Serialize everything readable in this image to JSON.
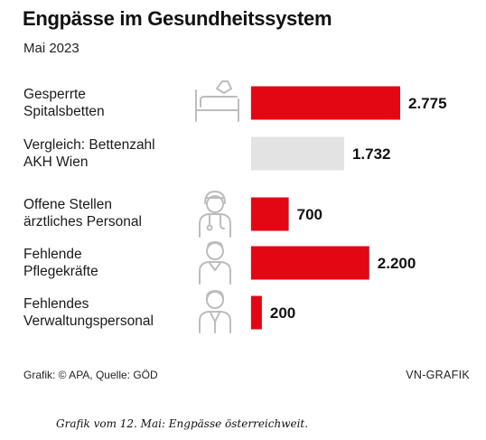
{
  "chart_data": {
    "type": "bar",
    "orientation": "horizontal",
    "title": "Engpässe im Gesundheitssystem",
    "subtitle": "Mai 2023",
    "categories": [
      [
        "Gesperrte",
        "Spitalsbetten"
      ],
      [
        "Vergleich: Bettenzahl",
        "AKH Wien"
      ],
      [
        "Offene Stellen",
        "ärztliches Personal"
      ],
      [
        "Fehlende",
        "Pflegekräfte"
      ],
      [
        "Fehlendes",
        "Verwaltungspersonal"
      ]
    ],
    "values": [
      2775,
      1732,
      700,
      2200,
      200
    ],
    "value_labels": [
      "2.775",
      "1.732",
      "700",
      "2.200",
      "200"
    ],
    "bar_colors": [
      "#e30613",
      "#e3e3e3",
      "#e30613",
      "#e30613",
      "#e30613"
    ],
    "icons": [
      "hospital-bed-icon",
      "",
      "doctor-icon",
      "nurse-icon",
      "office-worker-icon"
    ],
    "xlim": [
      0,
      2775
    ],
    "grid": false,
    "legend": "none"
  },
  "colors": {
    "accent": "#e30613",
    "comparison": "#e3e3e3",
    "icon": "#bdbdbd"
  },
  "footer": {
    "source": "Grafik: © APA, Quelle: GÖD",
    "credit": "VN-GRAFIK"
  },
  "caption": "Grafik vom 12. Mai: Engpässe österreichweit."
}
